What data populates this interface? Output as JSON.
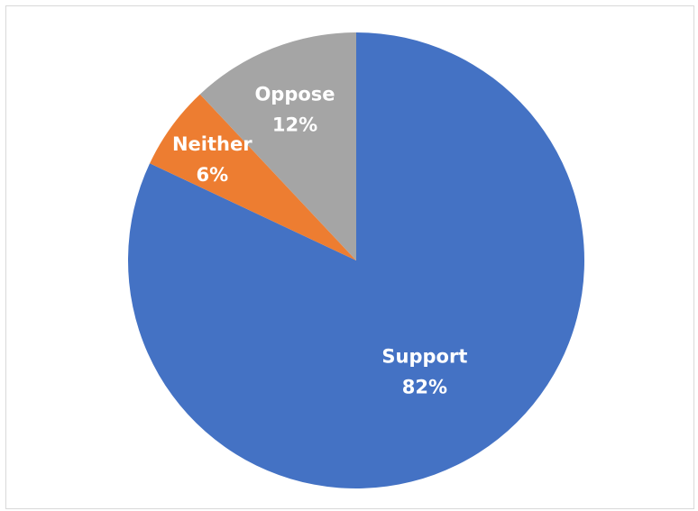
{
  "chart_data": {
    "type": "pie",
    "title": "",
    "start_angle_deg": 0,
    "direction": "clockwise",
    "slices": [
      {
        "label": "Support",
        "value": 82,
        "value_label": "82%",
        "color": "#4472C4"
      },
      {
        "label": "Neither",
        "value": 6,
        "value_label": "6%",
        "color": "#ED7D31"
      },
      {
        "label": "Oppose",
        "value": 12,
        "value_label": "12%",
        "color": "#A5A5A5"
      }
    ],
    "legend": "none",
    "data_labels": "inside, category and percentage"
  }
}
